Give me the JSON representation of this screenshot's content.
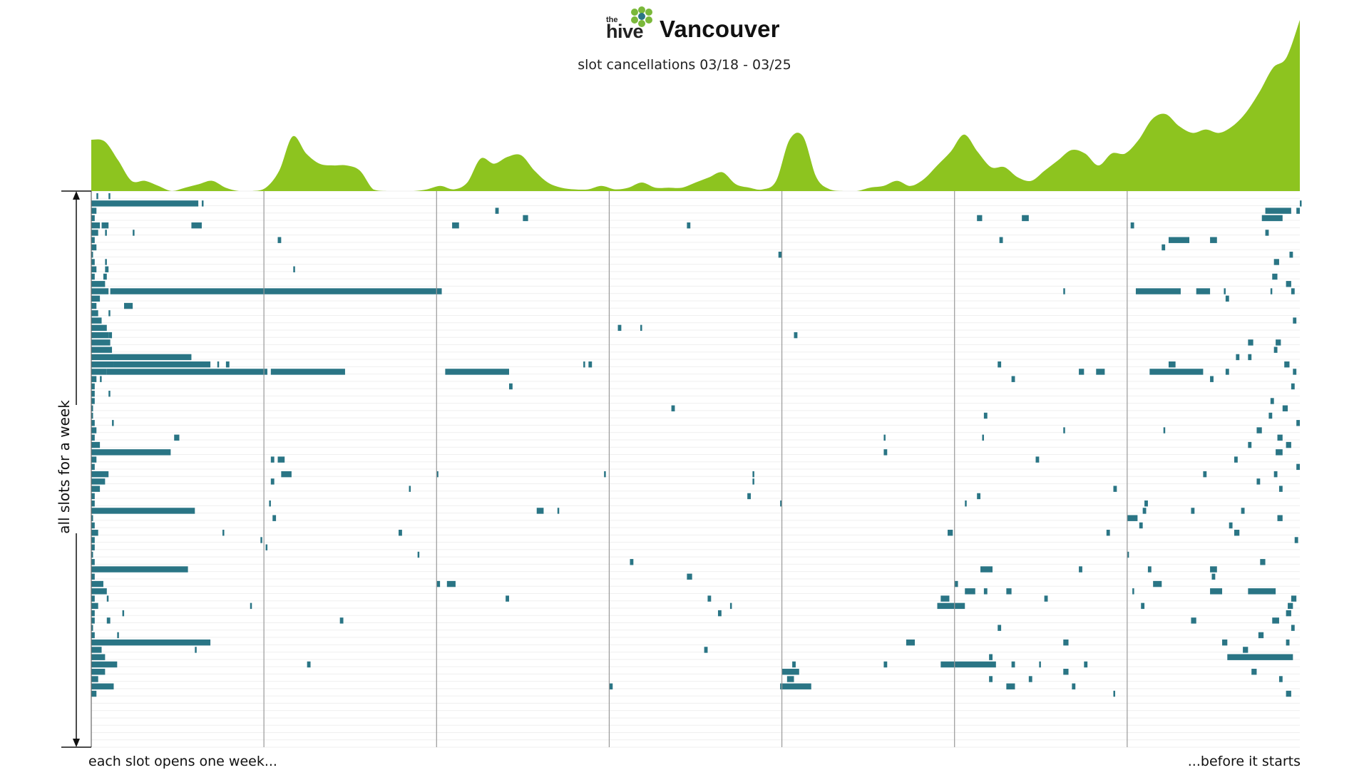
{
  "header": {
    "logo_the": "the",
    "logo_hive": "hive",
    "city": "Vancouver",
    "subtitle": "slot cancellations 03/18 - 03/25"
  },
  "colors": {
    "density_fill": "#8dc41f",
    "bar_fill": "#2a7585",
    "gridline": "#999999",
    "row_stripe": "#efefef",
    "logo_cells": "#7ab83a",
    "logo_center": "#2a7585"
  },
  "chart_data": {
    "type": "timeline-bar",
    "y_label": "all slots for a week",
    "x_label_start": "each slot opens one week...",
    "x_label_end": "...before it starts",
    "days": 7,
    "rows": 76,
    "density": [
      0.3,
      0.29,
      0.18,
      0.06,
      0.06,
      0.03,
      0,
      0.02,
      0.04,
      0.06,
      0.02,
      0,
      0,
      0.02,
      0.12,
      0.32,
      0.22,
      0.16,
      0.15,
      0.15,
      0.12,
      0.01,
      0,
      0,
      0,
      0.01,
      0.03,
      0.01,
      0.05,
      0.19,
      0.16,
      0.2,
      0.21,
      0.12,
      0.05,
      0.02,
      0.01,
      0.01,
      0.03,
      0.01,
      0.02,
      0.05,
      0.02,
      0.02,
      0.02,
      0.05,
      0.08,
      0.11,
      0.04,
      0.02,
      0.01,
      0.06,
      0.3,
      0.32,
      0.08,
      0.01,
      0,
      0,
      0.02,
      0.03,
      0.06,
      0.03,
      0.07,
      0.15,
      0.23,
      0.33,
      0.23,
      0.14,
      0.14,
      0.08,
      0.06,
      0.12,
      0.18,
      0.24,
      0.22,
      0.15,
      0.22,
      0.22,
      0.3,
      0.42,
      0.45,
      0.38,
      0.34,
      0.36,
      0.34,
      0.38,
      0.46,
      0.58,
      0.72,
      0.78,
      1.0
    ],
    "bars": [
      [
        0,
        0.03,
        0.04
      ],
      [
        0,
        0.1,
        0.11
      ],
      [
        1,
        0.0,
        0.62
      ],
      [
        1,
        0.64,
        0.65
      ],
      [
        1,
        7.0,
        7.0
      ],
      [
        2,
        0.0,
        0.03
      ],
      [
        2,
        2.34,
        2.36
      ],
      [
        2,
        6.8,
        6.95
      ],
      [
        2,
        6.98,
        7.0
      ],
      [
        3,
        0.0,
        0.02
      ],
      [
        3,
        2.5,
        2.53
      ],
      [
        3,
        5.13,
        5.16
      ],
      [
        3,
        5.39,
        5.43
      ],
      [
        3,
        6.78,
        6.9
      ],
      [
        4,
        0.0,
        0.05
      ],
      [
        4,
        0.06,
        0.1
      ],
      [
        4,
        0.58,
        0.64
      ],
      [
        4,
        2.09,
        2.13
      ],
      [
        4,
        3.45,
        3.47
      ],
      [
        4,
        6.02,
        6.04
      ],
      [
        5,
        0.0,
        0.04
      ],
      [
        5,
        0.08,
        0.09
      ],
      [
        5,
        0.24,
        0.25
      ],
      [
        5,
        6.8,
        6.82
      ],
      [
        6,
        0.0,
        0.02
      ],
      [
        6,
        1.08,
        1.1
      ],
      [
        6,
        5.26,
        5.28
      ],
      [
        6,
        6.24,
        6.36
      ],
      [
        6,
        6.48,
        6.52
      ],
      [
        7,
        0.0,
        0.03
      ],
      [
        7,
        6.2,
        6.22
      ],
      [
        8,
        0.0,
        0.01
      ],
      [
        8,
        3.98,
        4.0
      ],
      [
        8,
        6.94,
        6.96
      ],
      [
        9,
        0.0,
        0.02
      ],
      [
        9,
        0.08,
        0.09
      ],
      [
        9,
        6.85,
        6.88
      ],
      [
        10,
        0.0,
        0.03
      ],
      [
        10,
        0.08,
        0.1
      ],
      [
        10,
        1.17,
        1.18
      ],
      [
        11,
        0.0,
        0.02
      ],
      [
        11,
        0.07,
        0.09
      ],
      [
        11,
        6.84,
        6.87
      ],
      [
        12,
        0.0,
        0.08
      ],
      [
        12,
        6.92,
        6.95
      ],
      [
        13,
        0.0,
        0.1
      ],
      [
        13,
        0.11,
        2.03
      ],
      [
        13,
        5.63,
        5.64
      ],
      [
        13,
        6.05,
        6.31
      ],
      [
        13,
        6.4,
        6.48
      ],
      [
        13,
        6.56,
        6.57
      ],
      [
        13,
        6.83,
        6.84
      ],
      [
        13,
        6.95,
        6.97
      ],
      [
        14,
        0.0,
        0.05
      ],
      [
        14,
        6.57,
        6.59
      ],
      [
        15,
        0.0,
        0.03
      ],
      [
        15,
        0.19,
        0.24
      ],
      [
        16,
        0.0,
        0.04
      ],
      [
        16,
        0.1,
        0.11
      ],
      [
        17,
        0.0,
        0.06
      ],
      [
        17,
        6.96,
        6.98
      ],
      [
        18,
        0.0,
        0.09
      ],
      [
        18,
        3.05,
        3.07
      ],
      [
        18,
        3.18,
        3.19
      ],
      [
        19,
        0.0,
        0.1
      ],
      [
        19,
        0.1,
        0.12
      ],
      [
        19,
        4.07,
        4.09
      ],
      [
        20,
        0.0,
        0.11
      ],
      [
        20,
        6.7,
        6.73
      ],
      [
        20,
        6.86,
        6.89
      ],
      [
        21,
        0.0,
        0.12
      ],
      [
        21,
        6.85,
        6.87
      ],
      [
        22,
        0.0,
        0.13
      ],
      [
        22,
        0.13,
        0.58
      ],
      [
        22,
        6.63,
        6.65
      ],
      [
        22,
        6.7,
        6.72
      ],
      [
        23,
        0.0,
        0.13
      ],
      [
        23,
        0.13,
        0.69
      ],
      [
        23,
        0.73,
        0.74
      ],
      [
        23,
        0.78,
        0.8
      ],
      [
        23,
        2.85,
        2.86
      ],
      [
        23,
        2.88,
        2.9
      ],
      [
        23,
        5.25,
        5.27
      ],
      [
        23,
        6.24,
        6.28
      ],
      [
        23,
        6.91,
        6.94
      ],
      [
        24,
        0.0,
        0.09
      ],
      [
        24,
        0.09,
        1.02
      ],
      [
        24,
        1.04,
        1.47
      ],
      [
        24,
        2.05,
        2.42
      ],
      [
        24,
        5.72,
        5.75
      ],
      [
        24,
        5.82,
        5.87
      ],
      [
        24,
        6.13,
        6.44
      ],
      [
        24,
        6.57,
        6.59
      ],
      [
        24,
        6.96,
        6.98
      ],
      [
        25,
        0.0,
        0.03
      ],
      [
        25,
        0.05,
        0.06
      ],
      [
        25,
        5.33,
        5.35
      ],
      [
        25,
        6.48,
        6.5
      ],
      [
        26,
        0.0,
        0.02
      ],
      [
        26,
        2.42,
        2.44
      ],
      [
        26,
        6.95,
        6.97
      ],
      [
        27,
        0.0,
        0.02
      ],
      [
        27,
        0.1,
        0.11
      ],
      [
        28,
        0.0,
        0.02
      ],
      [
        28,
        6.83,
        6.85
      ],
      [
        29,
        0.0,
        0.01
      ],
      [
        29,
        3.36,
        3.38
      ],
      [
        29,
        6.9,
        6.93
      ],
      [
        30,
        0.0,
        0.01
      ],
      [
        30,
        5.17,
        5.19
      ],
      [
        30,
        6.82,
        6.84
      ],
      [
        31,
        0.0,
        0.02
      ],
      [
        31,
        0.12,
        0.13
      ],
      [
        31,
        6.98,
        7.0
      ],
      [
        32,
        0.0,
        0.03
      ],
      [
        32,
        5.63,
        5.64
      ],
      [
        32,
        6.21,
        6.22
      ],
      [
        32,
        6.75,
        6.78
      ],
      [
        33,
        0.0,
        0.02
      ],
      [
        33,
        0.48,
        0.51
      ],
      [
        33,
        4.59,
        4.6
      ],
      [
        33,
        5.16,
        5.17
      ],
      [
        33,
        6.87,
        6.9
      ],
      [
        34,
        0.0,
        0.05
      ],
      [
        34,
        6.7,
        6.72
      ],
      [
        34,
        6.92,
        6.95
      ],
      [
        35,
        0.0,
        0.46
      ],
      [
        35,
        4.59,
        4.61
      ],
      [
        35,
        6.86,
        6.9
      ],
      [
        36,
        0.0,
        0.03
      ],
      [
        36,
        1.04,
        1.06
      ],
      [
        36,
        1.08,
        1.12
      ],
      [
        36,
        5.47,
        5.49
      ],
      [
        36,
        6.62,
        6.64
      ],
      [
        37,
        0.0,
        0.02
      ],
      [
        37,
        6.98,
        7.0
      ],
      [
        38,
        0.0,
        0.1
      ],
      [
        38,
        1.1,
        1.16
      ],
      [
        38,
        2.0,
        2.01
      ],
      [
        38,
        2.97,
        2.98
      ],
      [
        38,
        3.83,
        3.84
      ],
      [
        38,
        6.44,
        6.46
      ],
      [
        38,
        6.85,
        6.87
      ],
      [
        39,
        0.0,
        0.08
      ],
      [
        39,
        1.04,
        1.06
      ],
      [
        39,
        3.83,
        3.84
      ],
      [
        39,
        6.75,
        6.77
      ],
      [
        40,
        0.0,
        0.05
      ],
      [
        40,
        1.84,
        1.85
      ],
      [
        40,
        5.92,
        5.94
      ],
      [
        40,
        6.88,
        6.9
      ],
      [
        41,
        0.0,
        0.02
      ],
      [
        41,
        3.8,
        3.82
      ],
      [
        41,
        5.13,
        5.15
      ],
      [
        42,
        0.0,
        0.02
      ],
      [
        42,
        1.03,
        1.04
      ],
      [
        42,
        3.99,
        4.0
      ],
      [
        42,
        5.06,
        5.07
      ],
      [
        42,
        6.1,
        6.12
      ],
      [
        43,
        0.0,
        0.6
      ],
      [
        43,
        2.58,
        2.62
      ],
      [
        43,
        2.7,
        2.71
      ],
      [
        43,
        6.09,
        6.11
      ],
      [
        43,
        6.37,
        6.39
      ],
      [
        43,
        6.66,
        6.68
      ],
      [
        44,
        0.0,
        0.01
      ],
      [
        44,
        1.05,
        1.07
      ],
      [
        44,
        6.0,
        6.06
      ],
      [
        44,
        6.87,
        6.9
      ],
      [
        45,
        0.0,
        0.02
      ],
      [
        45,
        6.07,
        6.09
      ],
      [
        45,
        6.59,
        6.61
      ],
      [
        46,
        0.0,
        0.04
      ],
      [
        46,
        0.76,
        0.77
      ],
      [
        46,
        1.78,
        1.8
      ],
      [
        46,
        4.96,
        4.99
      ],
      [
        46,
        5.88,
        5.9
      ],
      [
        46,
        6.62,
        6.65
      ],
      [
        47,
        0.0,
        0.02
      ],
      [
        47,
        0.98,
        0.99
      ],
      [
        47,
        6.97,
        6.99
      ],
      [
        48,
        0.0,
        0.02
      ],
      [
        48,
        1.01,
        1.02
      ],
      [
        49,
        0.0,
        0.01
      ],
      [
        49,
        1.89,
        1.9
      ],
      [
        49,
        6.0,
        6.01
      ],
      [
        50,
        0.0,
        0.02
      ],
      [
        50,
        3.12,
        3.14
      ],
      [
        50,
        6.77,
        6.8
      ],
      [
        51,
        0.0,
        0.56
      ],
      [
        51,
        5.15,
        5.22
      ],
      [
        51,
        5.72,
        5.74
      ],
      [
        51,
        6.12,
        6.14
      ],
      [
        51,
        6.48,
        6.52
      ],
      [
        52,
        0.0,
        0.02
      ],
      [
        52,
        3.45,
        3.48
      ],
      [
        52,
        6.49,
        6.51
      ],
      [
        53,
        0.0,
        0.07
      ],
      [
        53,
        2.0,
        2.02
      ],
      [
        53,
        2.06,
        2.11
      ],
      [
        53,
        5.0,
        5.02
      ],
      [
        53,
        6.15,
        6.2
      ],
      [
        54,
        0.0,
        0.09
      ],
      [
        54,
        5.06,
        5.12
      ],
      [
        54,
        5.17,
        5.19
      ],
      [
        54,
        5.3,
        5.33
      ],
      [
        54,
        6.03,
        6.04
      ],
      [
        54,
        6.48,
        6.55
      ],
      [
        54,
        6.7,
        6.86
      ],
      [
        55,
        0.0,
        0.02
      ],
      [
        55,
        0.09,
        0.1
      ],
      [
        55,
        2.4,
        2.42
      ],
      [
        55,
        3.57,
        3.59
      ],
      [
        55,
        4.92,
        4.97
      ],
      [
        55,
        5.52,
        5.54
      ],
      [
        55,
        6.95,
        6.98
      ],
      [
        56,
        0.0,
        0.04
      ],
      [
        56,
        0.92,
        0.93
      ],
      [
        56,
        3.7,
        3.71
      ],
      [
        56,
        4.9,
        5.06
      ],
      [
        56,
        6.08,
        6.1
      ],
      [
        56,
        6.93,
        6.96
      ],
      [
        57,
        0.0,
        0.02
      ],
      [
        57,
        0.18,
        0.19
      ],
      [
        57,
        3.63,
        3.65
      ],
      [
        57,
        6.92,
        6.95
      ],
      [
        58,
        0.0,
        0.02
      ],
      [
        58,
        0.09,
        0.11
      ],
      [
        58,
        1.44,
        1.46
      ],
      [
        58,
        6.37,
        6.4
      ],
      [
        58,
        6.84,
        6.88
      ],
      [
        59,
        0.0,
        0.01
      ],
      [
        59,
        5.25,
        5.27
      ],
      [
        59,
        6.95,
        6.97
      ],
      [
        60,
        0.0,
        0.02
      ],
      [
        60,
        0.15,
        0.16
      ],
      [
        60,
        6.76,
        6.79
      ],
      [
        61,
        0.0,
        0.69
      ],
      [
        61,
        4.72,
        4.77
      ],
      [
        61,
        5.63,
        5.66
      ],
      [
        61,
        6.55,
        6.58
      ],
      [
        61,
        6.92,
        6.94
      ],
      [
        62,
        0.0,
        0.06
      ],
      [
        62,
        0.6,
        0.61
      ],
      [
        62,
        3.55,
        3.57
      ],
      [
        62,
        6.67,
        6.7
      ],
      [
        63,
        0.0,
        0.08
      ],
      [
        63,
        5.2,
        5.22
      ],
      [
        63,
        6.58,
        6.96
      ],
      [
        64,
        0.0,
        0.15
      ],
      [
        64,
        1.25,
        1.27
      ],
      [
        64,
        4.06,
        4.08
      ],
      [
        64,
        4.59,
        4.61
      ],
      [
        64,
        4.92,
        5.24
      ],
      [
        64,
        5.33,
        5.35
      ],
      [
        64,
        5.49,
        5.5
      ],
      [
        64,
        5.75,
        5.77
      ],
      [
        65,
        0.0,
        0.08
      ],
      [
        65,
        4.0,
        4.1
      ],
      [
        65,
        5.63,
        5.66
      ],
      [
        65,
        6.72,
        6.75
      ],
      [
        66,
        0.0,
        0.04
      ],
      [
        66,
        4.03,
        4.07
      ],
      [
        66,
        5.2,
        5.22
      ],
      [
        66,
        5.43,
        5.45
      ],
      [
        66,
        6.88,
        6.9
      ],
      [
        67,
        0.0,
        0.13
      ],
      [
        67,
        3.0,
        3.02
      ],
      [
        67,
        3.99,
        4.17
      ],
      [
        67,
        5.3,
        5.35
      ],
      [
        67,
        5.68,
        5.7
      ],
      [
        68,
        0.0,
        0.03
      ],
      [
        68,
        5.92,
        5.93
      ],
      [
        68,
        6.92,
        6.95
      ]
    ]
  }
}
